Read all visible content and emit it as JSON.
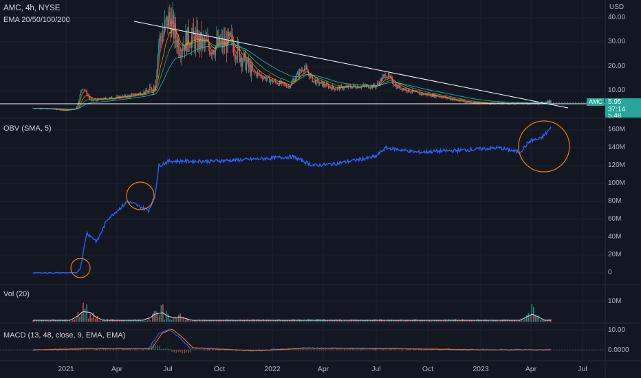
{
  "header": {
    "symbol_line": "AMC, 4h, NYSE",
    "indicator_line": "EMA 20/50/100/200"
  },
  "currency": "USD",
  "price_tag": {
    "symbol": "AMC",
    "price": "5.95",
    "countdown": "37:14",
    "secondary": "5.48"
  },
  "panes": {
    "obv_title": "OBV (SMA, 5)",
    "vol_title": "Vol (20)",
    "macd_title": "MACD (13, 48, close, 9, EMA, EMA)"
  },
  "axes": {
    "price_ticks": [
      "40.00",
      "30.00",
      "20.00",
      "10.00"
    ],
    "obv_ticks": [
      "160M",
      "140M",
      "120M",
      "100M",
      "80M",
      "60M",
      "40M",
      "20M",
      "0"
    ],
    "vol_ticks": [
      "10M"
    ],
    "macd_ticks": [
      "10.00",
      "0.0000"
    ],
    "x_ticks": [
      "2021",
      "Apr",
      "Jul",
      "Oct",
      "2022",
      "Apr",
      "Jul",
      "Oct",
      "2023",
      "Apr",
      "Jul"
    ]
  },
  "colors": {
    "background": "#131722",
    "up": "#26a69a",
    "down": "#ef5350",
    "obv": "#2962ff",
    "annotation": "#f57c00",
    "trendline": "#ffffff"
  },
  "chart_data": [
    {
      "type": "line",
      "name": "price",
      "x": [
        2020.85,
        2020.95,
        2021.0,
        2021.05,
        2021.08,
        2021.12,
        2021.2,
        2021.3,
        2021.4,
        2021.43,
        2021.45,
        2021.5,
        2021.55,
        2021.6,
        2021.7,
        2021.8,
        2021.9,
        2022.0,
        2022.08,
        2022.15,
        2022.2,
        2022.3,
        2022.4,
        2022.5,
        2022.55,
        2022.6,
        2022.7,
        2022.8,
        2022.9,
        2023.0,
        2023.1,
        2023.2,
        2023.3,
        2023.35
      ],
      "values": [
        3,
        2.5,
        2,
        3,
        12,
        6,
        7,
        8,
        10,
        12,
        30,
        40,
        28,
        32,
        28,
        30,
        18,
        14,
        12,
        20,
        14,
        11,
        12,
        12,
        17,
        12,
        9,
        8,
        6,
        5,
        5,
        5,
        5,
        5.95
      ],
      "ylim": [
        0,
        42
      ],
      "annotations": [
        "Descending trendline from 2021 peak",
        "Horizontal support near 5"
      ]
    },
    {
      "type": "line",
      "name": "OBV",
      "x": [
        2020.85,
        2021.0,
        2021.05,
        2021.07,
        2021.1,
        2021.15,
        2021.2,
        2021.3,
        2021.35,
        2021.4,
        2021.43,
        2021.45,
        2021.5,
        2021.7,
        2021.9,
        2022.1,
        2022.2,
        2022.3,
        2022.5,
        2022.55,
        2022.7,
        2022.9,
        2023.1,
        2023.2,
        2023.25,
        2023.3,
        2023.35
      ],
      "values": [
        0,
        0,
        0,
        5,
        45,
        35,
        60,
        80,
        75,
        70,
        85,
        120,
        125,
        125,
        127,
        130,
        120,
        122,
        130,
        140,
        135,
        137,
        140,
        135,
        148,
        150,
        162
      ],
      "ylim": [
        -5,
        170
      ]
    },
    {
      "type": "bar",
      "name": "volume",
      "annotations": [
        "Volume spikes around Jan 2021, Jun 2021 and Mar 2023"
      ]
    },
    {
      "type": "line",
      "name": "MACD",
      "x": [
        2020.85,
        2021.08,
        2021.4,
        2021.45,
        2021.5,
        2021.55,
        2021.6,
        2021.9,
        2022.15,
        2022.55,
        2023.0,
        2023.35
      ],
      "values": [
        0,
        0.5,
        0.5,
        8,
        10,
        6,
        1,
        -0.5,
        0.8,
        0.6,
        0,
        0
      ],
      "ylim": [
        -3,
        12
      ]
    }
  ]
}
